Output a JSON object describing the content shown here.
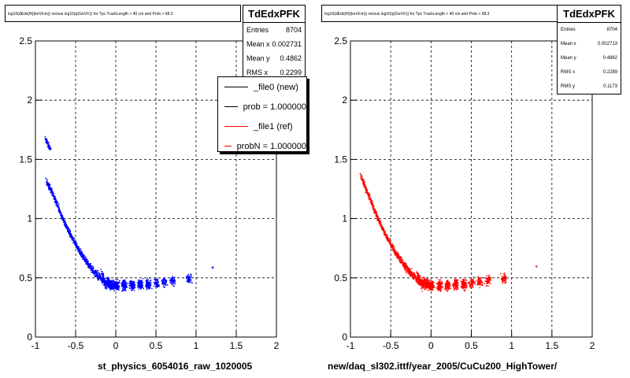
{
  "footer_text": "",
  "chart_data": [
    {
      "type": "scatter",
      "title": "log10(dEdx(fit)(keV/cm)) versus log10(p(GeV/c)) for Tpc TrackLength > 40 cm and Prob > 68.3",
      "xlabel": "st_physics_6054016_raw_1020005",
      "ylabel": "",
      "xlim": [
        -1,
        2
      ],
      "ylim": [
        0,
        2.5
      ],
      "x_ticks": [
        "-1",
        "-0.5",
        "0",
        "0.5",
        "1",
        "1.5",
        "2"
      ],
      "y_ticks": [
        "0",
        "0.5",
        "1",
        "1.5",
        "2",
        "2.5"
      ],
      "grid": true,
      "marker_color": "#0000ff",
      "stats": {
        "name": "TdEdxPFK",
        "entries_label": "Entries",
        "entries": "8704",
        "mean_x_label": "Mean x",
        "mean_x": "0.002731",
        "mean_y_label": "Mean y",
        "mean_y": "0.4862",
        "rms_x_label": "RMS x",
        "rms_x": "0.2299"
      },
      "legend": [
        {
          "label": "_file0 (new)",
          "color": "#000000"
        },
        {
          "label": "prob = 1.000000",
          "color": "#000000"
        },
        {
          "label": "_file1 (ref)",
          "color": "#ff0000"
        },
        {
          "label": "probN = 1.000000",
          "color": "#ff0000"
        }
      ],
      "series": [
        {
          "color": "#0000ff",
          "points": [
            [
              -0.85,
              1.29
            ],
            [
              -0.8,
              1.23
            ],
            [
              -0.75,
              1.15
            ],
            [
              -0.7,
              1.06
            ],
            [
              -0.65,
              0.98
            ],
            [
              -0.6,
              0.91
            ],
            [
              -0.55,
              0.84
            ],
            [
              -0.5,
              0.78
            ],
            [
              -0.45,
              0.72
            ],
            [
              -0.4,
              0.67
            ],
            [
              -0.35,
              0.62
            ],
            [
              -0.3,
              0.58
            ],
            [
              -0.25,
              0.54
            ],
            [
              -0.2,
              0.51
            ],
            [
              -0.15,
              0.48
            ],
            [
              -0.1,
              0.46
            ],
            [
              -0.05,
              0.45
            ],
            [
              0,
              0.44
            ],
            [
              0.1,
              0.44
            ],
            [
              0.2,
              0.44
            ],
            [
              0.3,
              0.45
            ],
            [
              0.4,
              0.45
            ],
            [
              0.5,
              0.46
            ],
            [
              0.6,
              0.47
            ],
            [
              0.7,
              0.48
            ],
            [
              0.9,
              0.5
            ],
            [
              1.2,
              0.59
            ],
            [
              -0.85,
              1.63
            ]
          ]
        }
      ]
    },
    {
      "type": "scatter",
      "title": "log10(dEdx(fit)(keV/cm)) versus log10(p(GeV/c)) for Tpc TrackLength > 40 cm and Prob > 68.3",
      "xlabel": "new/daq_sl302.ittf/year_2005/CuCu200_HighTower/",
      "ylabel": "",
      "xlim": [
        -1,
        2
      ],
      "ylim": [
        0,
        2.5
      ],
      "x_ticks": [
        "-1",
        "-0.5",
        "0",
        "0.5",
        "1",
        "1.5",
        "2"
      ],
      "y_ticks": [
        "0",
        "0.5",
        "1",
        "1.5",
        "2",
        "2.5"
      ],
      "grid": true,
      "marker_color": "#ff0000",
      "stats": {
        "name": "TdEdxPFK",
        "entries_label": "Entries",
        "entries": "8704",
        "mean_x_label": "Mean x",
        "mean_x": "0.002713",
        "mean_y_label": "Mean y",
        "mean_y": "0.4862",
        "rms_x_label": "RMS x",
        "rms_x": "0.2289",
        "rms_y_label": "RMS y",
        "rms_y": "0.1173"
      },
      "series": [
        {
          "color": "#ff0000",
          "points": [
            [
              -0.85,
              1.32
            ],
            [
              -0.8,
              1.23
            ],
            [
              -0.75,
              1.15
            ],
            [
              -0.7,
              1.06
            ],
            [
              -0.65,
              0.98
            ],
            [
              -0.6,
              0.91
            ],
            [
              -0.55,
              0.84
            ],
            [
              -0.5,
              0.78
            ],
            [
              -0.45,
              0.72
            ],
            [
              -0.4,
              0.67
            ],
            [
              -0.35,
              0.62
            ],
            [
              -0.3,
              0.58
            ],
            [
              -0.25,
              0.54
            ],
            [
              -0.2,
              0.51
            ],
            [
              -0.15,
              0.48
            ],
            [
              -0.1,
              0.46
            ],
            [
              -0.05,
              0.45
            ],
            [
              0,
              0.44
            ],
            [
              0.1,
              0.44
            ],
            [
              0.2,
              0.44
            ],
            [
              0.3,
              0.45
            ],
            [
              0.4,
              0.45
            ],
            [
              0.5,
              0.46
            ],
            [
              0.6,
              0.47
            ],
            [
              0.7,
              0.48
            ],
            [
              0.9,
              0.5
            ],
            [
              1.3,
              0.6
            ]
          ]
        }
      ]
    }
  ]
}
